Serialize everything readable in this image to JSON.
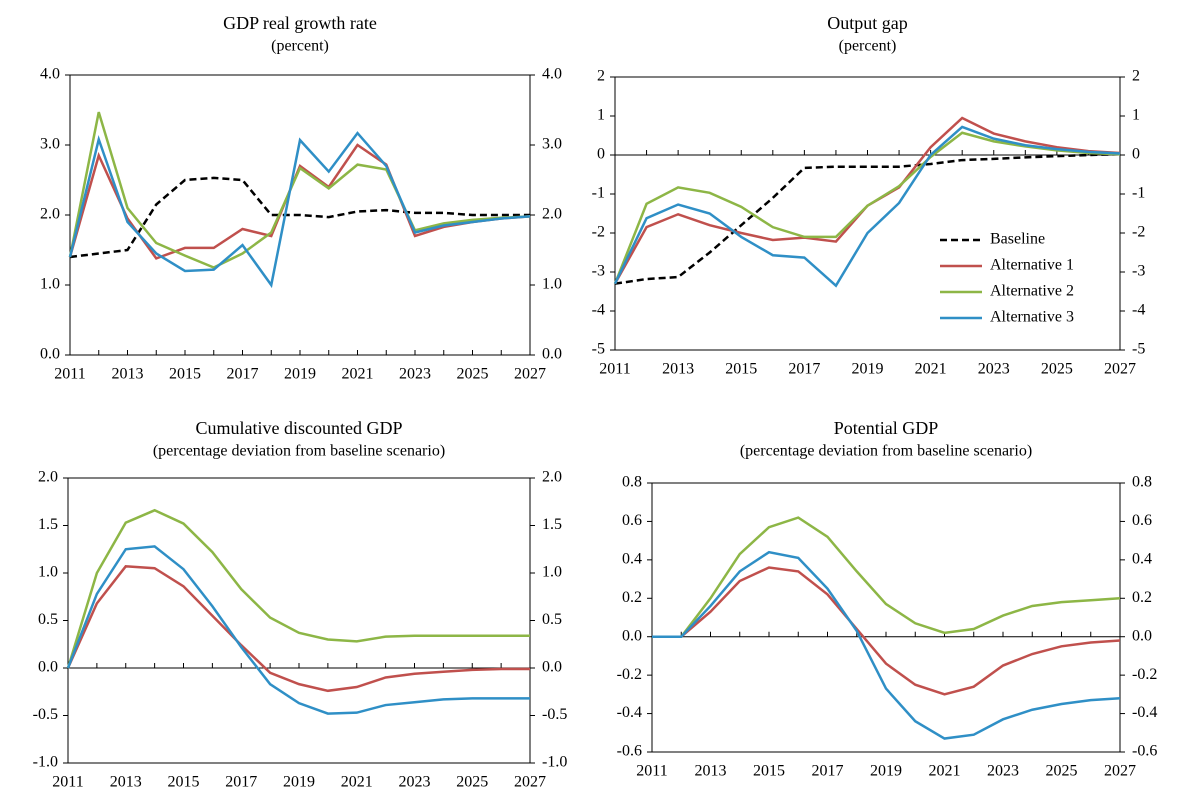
{
  "chart_data": [
    {
      "type": "line",
      "title": "GDP real growth rate",
      "subtitle": "(percent)",
      "x": [
        2011,
        2012,
        2013,
        2014,
        2015,
        2016,
        2017,
        2018,
        2019,
        2020,
        2021,
        2022,
        2023,
        2024,
        2025,
        2026,
        2027
      ],
      "xlim": [
        2011,
        2027
      ],
      "xticks": [
        2011,
        2013,
        2015,
        2017,
        2019,
        2021,
        2023,
        2025,
        2027
      ],
      "ylim": [
        0,
        4
      ],
      "yticks": [
        {
          "value": 0,
          "label": "0.0"
        },
        {
          "value": 1,
          "label": "1.0"
        },
        {
          "value": 2,
          "label": "2.0"
        },
        {
          "value": 3,
          "label": "3.0"
        },
        {
          "value": 4,
          "label": "4.0"
        }
      ],
      "series": [
        {
          "name": "Baseline",
          "color": "#000000",
          "dashed": true,
          "values": [
            1.4,
            1.45,
            1.5,
            2.15,
            2.5,
            2.53,
            2.5,
            2.0,
            2.0,
            1.97,
            2.05,
            2.07,
            2.03,
            2.03,
            2.0,
            2.0,
            2.0
          ]
        },
        {
          "name": "Alternative 1",
          "color": "#c0504d",
          "values": [
            1.4,
            2.85,
            1.95,
            1.38,
            1.53,
            1.53,
            1.8,
            1.7,
            2.7,
            2.4,
            3.0,
            2.72,
            1.7,
            1.83,
            1.9,
            1.95,
            1.98
          ]
        },
        {
          "name": "Alternative 2",
          "color": "#8db646",
          "values": [
            1.4,
            3.47,
            2.1,
            1.6,
            1.42,
            1.25,
            1.45,
            1.75,
            2.67,
            2.38,
            2.72,
            2.65,
            1.78,
            1.88,
            1.93,
            1.96,
            1.98
          ]
        },
        {
          "name": "Alternative 3",
          "color": "#2f8fc6",
          "values": [
            1.4,
            3.08,
            1.9,
            1.45,
            1.2,
            1.22,
            1.57,
            1.0,
            3.07,
            2.62,
            3.17,
            2.7,
            1.75,
            1.85,
            1.9,
            1.95,
            1.98
          ]
        }
      ]
    },
    {
      "type": "line",
      "title": "Output gap",
      "subtitle": "(percent)",
      "x": [
        2011,
        2012,
        2013,
        2014,
        2015,
        2016,
        2017,
        2018,
        2019,
        2020,
        2021,
        2022,
        2023,
        2024,
        2025,
        2026,
        2027
      ],
      "xlim": [
        2011,
        2027
      ],
      "xticks": [
        2011,
        2013,
        2015,
        2017,
        2019,
        2021,
        2023,
        2025,
        2027
      ],
      "ylim": [
        -5,
        2
      ],
      "yticks": [
        -5,
        -4,
        -3,
        -2,
        -1,
        0,
        1,
        2
      ],
      "legend": "lower right",
      "series": [
        {
          "name": "Baseline",
          "color": "#000000",
          "dashed": true,
          "values": [
            -3.3,
            -3.18,
            -3.13,
            -2.5,
            -1.8,
            -1.1,
            -0.33,
            -0.3,
            -0.3,
            -0.3,
            -0.23,
            -0.13,
            -0.1,
            -0.06,
            -0.03,
            0.0,
            0.02
          ]
        },
        {
          "name": "Alternative 1",
          "color": "#c0504d",
          "values": [
            -3.3,
            -1.85,
            -1.52,
            -1.8,
            -2.0,
            -2.18,
            -2.12,
            -2.22,
            -1.3,
            -0.83,
            0.2,
            0.95,
            0.55,
            0.35,
            0.2,
            0.1,
            0.05
          ]
        },
        {
          "name": "Alternative 2",
          "color": "#8db646",
          "values": [
            -3.3,
            -1.25,
            -0.83,
            -0.97,
            -1.33,
            -1.85,
            -2.1,
            -2.1,
            -1.3,
            -0.8,
            -0.05,
            0.57,
            0.35,
            0.22,
            0.12,
            0.05,
            0.02
          ]
        },
        {
          "name": "Alternative 3",
          "color": "#2f8fc6",
          "values": [
            -3.3,
            -1.62,
            -1.27,
            -1.5,
            -2.1,
            -2.57,
            -2.63,
            -3.35,
            -2.0,
            -1.23,
            0.0,
            0.72,
            0.42,
            0.25,
            0.15,
            0.08,
            0.04
          ]
        }
      ]
    },
    {
      "type": "line",
      "title": "Cumulative discounted GDP",
      "subtitle": "(percentage deviation from baseline scenario)",
      "x": [
        2011,
        2012,
        2013,
        2014,
        2015,
        2016,
        2017,
        2018,
        2019,
        2020,
        2021,
        2022,
        2023,
        2024,
        2025,
        2026,
        2027
      ],
      "xlim": [
        2011,
        2027
      ],
      "xticks": [
        2011,
        2013,
        2015,
        2017,
        2019,
        2021,
        2023,
        2025,
        2027
      ],
      "ylim": [
        -1,
        2
      ],
      "yticks": [
        {
          "value": -1,
          "label": "-1.0"
        },
        -0.5,
        {
          "value": 0,
          "label": "0.0"
        },
        0.5,
        {
          "value": 1,
          "label": "1.0"
        },
        1.5,
        {
          "value": 2,
          "label": "2.0"
        }
      ],
      "series": [
        {
          "name": "Alternative 1",
          "color": "#c0504d",
          "values": [
            0,
            0.68,
            1.07,
            1.05,
            0.86,
            0.55,
            0.24,
            -0.05,
            -0.17,
            -0.24,
            -0.2,
            -0.1,
            -0.06,
            -0.04,
            -0.02,
            -0.01,
            -0.01
          ]
        },
        {
          "name": "Alternative 2",
          "color": "#8db646",
          "values": [
            0,
            1.0,
            1.53,
            1.66,
            1.52,
            1.22,
            0.83,
            0.53,
            0.37,
            0.3,
            0.28,
            0.33,
            0.34,
            0.34,
            0.34,
            0.34,
            0.34
          ]
        },
        {
          "name": "Alternative 3",
          "color": "#2f8fc6",
          "values": [
            0,
            0.78,
            1.25,
            1.28,
            1.04,
            0.65,
            0.22,
            -0.17,
            -0.37,
            -0.48,
            -0.47,
            -0.39,
            -0.36,
            -0.33,
            -0.32,
            -0.32,
            -0.32
          ]
        }
      ]
    },
    {
      "type": "line",
      "title": "Potential GDP",
      "subtitle": "(percentage deviation from baseline scenario)",
      "x": [
        2011,
        2012,
        2013,
        2014,
        2015,
        2016,
        2017,
        2018,
        2019,
        2020,
        2021,
        2022,
        2023,
        2024,
        2025,
        2026,
        2027
      ],
      "xlim": [
        2011,
        2027
      ],
      "xticks": [
        2011,
        2013,
        2015,
        2017,
        2019,
        2021,
        2023,
        2025,
        2027
      ],
      "ylim": [
        -0.6,
        0.8
      ],
      "yticks": [
        -0.6,
        -0.4,
        -0.2,
        {
          "value": 0,
          "label": "0.0"
        },
        0.2,
        0.4,
        0.6,
        0.8
      ],
      "series": [
        {
          "name": "Alternative 1",
          "color": "#c0504d",
          "values": [
            0,
            0,
            0.13,
            0.29,
            0.36,
            0.34,
            0.22,
            0.04,
            -0.14,
            -0.25,
            -0.3,
            -0.26,
            -0.15,
            -0.09,
            -0.05,
            -0.03,
            -0.02
          ]
        },
        {
          "name": "Alternative 2",
          "color": "#8db646",
          "values": [
            0,
            0,
            0.2,
            0.43,
            0.57,
            0.62,
            0.52,
            0.34,
            0.17,
            0.07,
            0.02,
            0.04,
            0.11,
            0.16,
            0.18,
            0.19,
            0.2
          ]
        },
        {
          "name": "Alternative 3",
          "color": "#2f8fc6",
          "values": [
            0,
            0,
            0.16,
            0.34,
            0.44,
            0.41,
            0.25,
            0.03,
            -0.27,
            -0.44,
            -0.53,
            -0.51,
            -0.43,
            -0.38,
            -0.35,
            -0.33,
            -0.32
          ]
        }
      ]
    }
  ]
}
